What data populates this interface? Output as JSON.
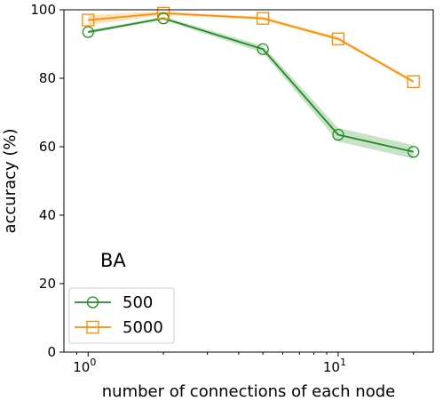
{
  "chart_data": {
    "type": "line",
    "title": "",
    "xlabel": "number of connections of each node",
    "ylabel": "accuracy (%)",
    "x_scale": "log",
    "xlim": [
      0.8,
      24
    ],
    "ylim": [
      0,
      100
    ],
    "grid": false,
    "legend_position": "lower-left",
    "annotation": "BA",
    "x_ticks": [
      {
        "value": 1,
        "base": "10",
        "exp": "0"
      },
      {
        "value": 10,
        "base": "10",
        "exp": "1"
      }
    ],
    "y_ticks": [
      {
        "value": 0,
        "label": "0"
      },
      {
        "value": 20,
        "label": "20"
      },
      {
        "value": 40,
        "label": "40"
      },
      {
        "value": 60,
        "label": "60"
      },
      {
        "value": 80,
        "label": "80"
      },
      {
        "value": 100,
        "label": "100"
      }
    ],
    "series": [
      {
        "name": "500",
        "color": "#228b22",
        "marker": "circle",
        "x": [
          1,
          2,
          5,
          10,
          20
        ],
        "y": [
          93.5,
          97.5,
          88.5,
          63.5,
          58.5
        ],
        "y_low": [
          93.0,
          97.0,
          87.5,
          61.5,
          56.5
        ],
        "y_high": [
          94.0,
          98.0,
          89.5,
          65.5,
          60.5
        ]
      },
      {
        "name": "5000",
        "color": "#ff8c00",
        "marker": "square",
        "x": [
          1,
          2,
          5,
          10,
          20
        ],
        "y": [
          97.0,
          99.0,
          97.5,
          91.5,
          79.0
        ],
        "y_low": [
          95.5,
          98.5,
          97.0,
          91.0,
          78.5
        ],
        "y_high": [
          98.5,
          99.5,
          98.0,
          92.0,
          79.5
        ]
      }
    ]
  }
}
